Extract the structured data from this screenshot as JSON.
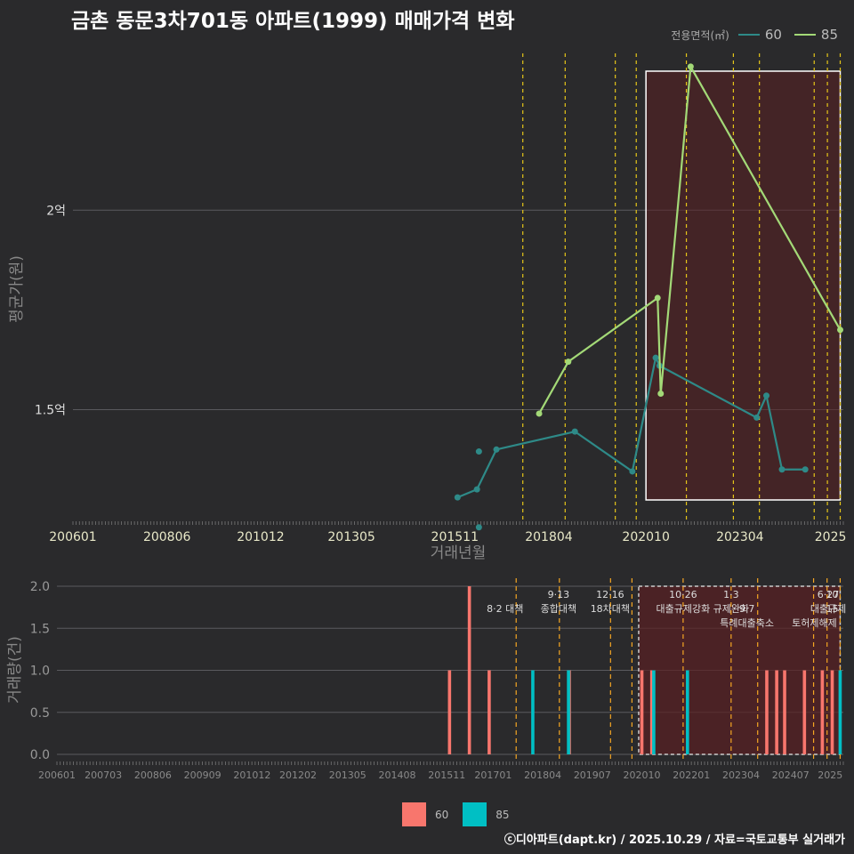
{
  "title": "금촌 동문3차701동 아파트(1999) 매매가격 변화",
  "legend_title": "전용면적(㎡)",
  "credit": "ⓒ디아파트(dapt.kr) / 2025.10.29 / 자료=국토교통부 실거래가",
  "colors": {
    "s60_line": "#2e8a88",
    "s85_line": "#a3d977",
    "bar60": "#f8766d",
    "bar85": "#00bfc4",
    "policy_line": "#e6c619",
    "policy_line2": "#f5a623",
    "highlight": "#5a1f22"
  },
  "chart_data": [
    {
      "type": "line",
      "title": "금촌 동문3차701동 아파트(1999) 매매가격 변화",
      "xlabel": "거래년월",
      "ylabel": "평균가(원)",
      "x_range": [
        2006.0,
        2025.83
      ],
      "y_range": [
        1.22,
        2.42
      ],
      "yticks": [
        {
          "v": 1.5,
          "label": "1.5억"
        },
        {
          "v": 2.0,
          "label": "2억"
        }
      ],
      "xticks": [
        {
          "v": 2006.0,
          "label": "200601"
        },
        {
          "v": 2008.42,
          "label": "200806"
        },
        {
          "v": 2010.83,
          "label": "201012"
        },
        {
          "v": 2013.17,
          "label": "201305"
        },
        {
          "v": 2015.83,
          "label": "201511"
        },
        {
          "v": 2018.25,
          "label": "201804"
        },
        {
          "v": 2020.75,
          "label": "202010"
        },
        {
          "v": 2023.17,
          "label": "202304"
        },
        {
          "v": 2025.5,
          "label": "2025"
        }
      ],
      "highlight_range": [
        2020.75,
        2025.75
      ],
      "policy_lines": [
        2017.58,
        2018.67,
        2019.96,
        2020.5,
        2021.79,
        2023.0,
        2023.67,
        2025.08,
        2025.42,
        2025.75
      ],
      "series": [
        {
          "name": "60",
          "x": [
            2015.9,
            2016.4,
            2016.9,
            2018.92,
            2020.4,
            2021.0,
            2021.1,
            2023.6,
            2023.85,
            2024.25,
            2024.85
          ],
          "y": [
            1.28,
            1.3,
            1.4,
            1.445,
            1.345,
            1.63,
            1.61,
            1.48,
            1.535,
            1.35,
            1.35
          ]
        },
        {
          "name": "85",
          "x": [
            2018.0,
            2018.75,
            2021.05,
            2021.13,
            2021.9,
            2025.75
          ],
          "y": [
            1.49,
            1.62,
            1.78,
            1.54,
            2.36,
            1.7
          ]
        }
      ],
      "extra_points": [
        {
          "name": "60",
          "x": 2016.45,
          "y": 1.395
        },
        {
          "name": "60",
          "x": 2016.45,
          "y": 1.205
        }
      ]
    },
    {
      "type": "bar",
      "xlabel": "",
      "ylabel": "거래량(건)",
      "x_range": [
        2006.0,
        2025.83
      ],
      "y_range": [
        0,
        2.0
      ],
      "yticks": [
        0.0,
        0.5,
        1.0,
        1.5,
        2.0
      ],
      "xticks": [
        {
          "v": 2006.0,
          "label": "200601"
        },
        {
          "v": 2007.17,
          "label": "200703"
        },
        {
          "v": 2008.42,
          "label": "200806"
        },
        {
          "v": 2009.67,
          "label": "200909"
        },
        {
          "v": 2010.92,
          "label": "201012"
        },
        {
          "v": 2012.08,
          "label": "201202"
        },
        {
          "v": 2013.33,
          "label": "201305"
        },
        {
          "v": 2014.58,
          "label": "201408"
        },
        {
          "v": 2015.83,
          "label": "201511"
        },
        {
          "v": 2017.0,
          "label": "201701"
        },
        {
          "v": 2018.25,
          "label": "201804"
        },
        {
          "v": 2019.5,
          "label": "201907"
        },
        {
          "v": 2020.75,
          "label": "202010"
        },
        {
          "v": 2022.0,
          "label": "202201"
        },
        {
          "v": 2023.25,
          "label": "202304"
        },
        {
          "v": 2024.5,
          "label": "202407"
        },
        {
          "v": 2025.5,
          "label": "2025"
        }
      ],
      "highlight_range": [
        2020.67,
        2025.75
      ],
      "policy_lines": [
        2017.58,
        2018.67,
        2019.96,
        2020.5,
        2021.79,
        2023.0,
        2023.67,
        2025.08,
        2025.42,
        2025.75
      ],
      "annotations": [
        {
          "x": 2017.3,
          "row": 1,
          "text": "8·2 대책"
        },
        {
          "x": 2018.65,
          "row": 0,
          "text": "9·13"
        },
        {
          "x": 2018.65,
          "row": 1,
          "text": "종합대책"
        },
        {
          "x": 2019.95,
          "row": 0,
          "text": "12·16"
        },
        {
          "x": 2019.95,
          "row": 1,
          "text": "18차대책"
        },
        {
          "x": 2021.79,
          "row": 0,
          "text": "10·26"
        },
        {
          "x": 2021.79,
          "row": 1,
          "text": "대출규제강화"
        },
        {
          "x": 2023.0,
          "row": 0,
          "text": "1·3"
        },
        {
          "x": 2023.0,
          "row": 1,
          "text": "규제완화"
        },
        {
          "x": 2023.4,
          "row": 1,
          "text": "9·7"
        },
        {
          "x": 2023.4,
          "row": 2,
          "text": "특례대출축소"
        },
        {
          "x": 2025.45,
          "row": 0,
          "text": "6·27"
        },
        {
          "x": 2025.55,
          "row": 0,
          "text": "10"
        },
        {
          "x": 2025.45,
          "row": 1,
          "text": "대출규제"
        },
        {
          "x": 2025.55,
          "row": 1,
          "text": "15"
        },
        {
          "x": 2025.1,
          "row": 2,
          "text": "토허제해제"
        }
      ],
      "series": [
        {
          "name": "60",
          "x": [
            2015.9,
            2016.4,
            2016.9,
            2018.92,
            2020.75,
            2021.0,
            2023.9,
            2024.15,
            2024.35,
            2024.85,
            2025.3,
            2025.55
          ],
          "values": [
            1,
            2,
            1,
            1,
            1,
            1,
            1,
            1,
            1,
            1,
            1,
            1
          ]
        },
        {
          "name": "85",
          "x": [
            2018.0,
            2018.9,
            2021.05,
            2021.9,
            2025.75
          ],
          "values": [
            1,
            1,
            1,
            1,
            1
          ]
        }
      ]
    }
  ]
}
